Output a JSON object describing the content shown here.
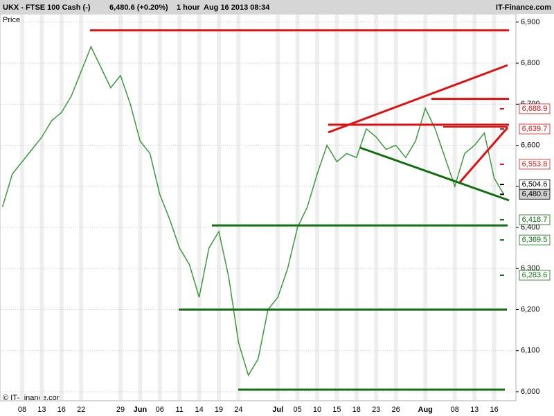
{
  "header": {
    "symbol": "UKX - FTSE 100 Cash (-)",
    "quote": "6,480.6 (+0.20%)",
    "interval": "1 hour",
    "datetime": "Aug 16 2013 08:34",
    "brand": "IT-Finance.com"
  },
  "footer": "© IT-Finance.com",
  "chart_data": {
    "type": "line",
    "y_label": "Price",
    "color": "#3a9a3a",
    "categories": [
      null,
      null,
      "08",
      null,
      "13",
      null,
      "16",
      null,
      "22",
      null,
      null,
      null,
      "29",
      null,
      "Jun",
      null,
      "06",
      null,
      "11",
      null,
      "14",
      null,
      "19",
      null,
      "24",
      null,
      null,
      null,
      "Jul",
      null,
      "05",
      null,
      "10",
      null,
      "15",
      null,
      "18",
      null,
      "23",
      null,
      "26",
      null,
      null,
      "Aug",
      null,
      null,
      "08",
      null,
      "13",
      null,
      "16",
      null
    ],
    "values": [
      6450,
      6530,
      6560,
      6590,
      6620,
      6660,
      6680,
      6720,
      6780,
      6840,
      6790,
      6740,
      6770,
      6700,
      6610,
      6580,
      6480,
      6420,
      6350,
      6310,
      6230,
      6350,
      6390,
      6280,
      6120,
      6040,
      6080,
      6200,
      6230,
      6300,
      6400,
      6450,
      6530,
      6600,
      6560,
      6580,
      6570,
      6640,
      6620,
      6590,
      6600,
      6570,
      6610,
      6690,
      6640,
      6570,
      6500,
      6580,
      6600,
      6630,
      6520,
      6480
    ],
    "ylim": [
      5978,
      6920
    ],
    "yticks": [
      {
        "value": 6000,
        "label": "6,000"
      },
      {
        "value": 6100,
        "label": "6,100"
      },
      {
        "value": 6200,
        "label": "6,200"
      },
      {
        "value": 6300,
        "label": "6,300"
      },
      {
        "value": 6400,
        "label": "6,400"
      },
      {
        "value": 6500,
        "label": "6,500"
      },
      {
        "value": 6600,
        "label": "6,600"
      },
      {
        "value": 6700,
        "label": "6,700"
      },
      {
        "value": 6800,
        "label": "6,800"
      },
      {
        "value": 6900,
        "label": "6,900"
      }
    ],
    "grid": true,
    "levels": [
      {
        "value": 6880,
        "color": "#e01010"
      },
      {
        "value": 6713,
        "color": "#e01010"
      },
      {
        "value": 6650,
        "color": "#e01010"
      },
      {
        "value": 6405,
        "color": "#107010"
      },
      {
        "value": 6200,
        "color": "#107010"
      },
      {
        "value": 6005,
        "color": "#107010"
      }
    ],
    "price_markers": [
      {
        "value": 6688.9,
        "label": "6,688.9",
        "color": "#e01010"
      },
      {
        "value": 6639.7,
        "label": "6,639.7",
        "color": "#e01010"
      },
      {
        "value": 6553.8,
        "label": "6,553.8",
        "color": "#e01010"
      },
      {
        "value": 6504.6,
        "label": "6,504.6",
        "color": "#000000"
      },
      {
        "value": 6480.6,
        "label": "6,480.6",
        "color": "#000000"
      },
      {
        "value": 6418.7,
        "label": "6,418.7",
        "color": "#107010"
      },
      {
        "value": 6369.5,
        "label": "6,369.5",
        "color": "#107010"
      },
      {
        "value": 6283.6,
        "label": "6,283.6",
        "color": "#107010"
      }
    ]
  }
}
